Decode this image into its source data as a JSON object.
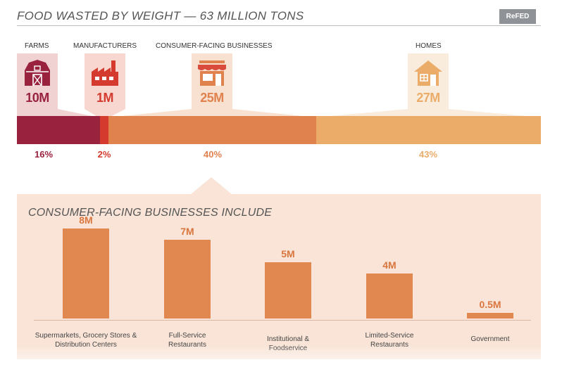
{
  "header": {
    "title": "FOOD WASTED BY WEIGHT — 63 MILLION TONS",
    "badge": "ReFED"
  },
  "categories": [
    {
      "label": "FARMS",
      "value": "10M",
      "pct": "16%",
      "icon": "barn-icon",
      "color": "#99223f",
      "pill_bg": "#f1d2d3"
    },
    {
      "label": "MANUFACTURERS",
      "value": "1M",
      "pct": "2%",
      "icon": "factory-icon",
      "color": "#d43b2e",
      "pill_bg": "#f8d7d1"
    },
    {
      "label": "CONSUMER-FACING BUSINESSES",
      "value": "25M",
      "pct": "40%",
      "icon": "storefront-icon",
      "color": "#e0824e",
      "pill_bg": "#f8e1d0"
    },
    {
      "label": "HOMES",
      "value": "27M",
      "pct": "43%",
      "icon": "house-icon",
      "color": "#ebac6a",
      "pill_bg": "#f9ecdc"
    }
  ],
  "detail": {
    "title": "CONSUMER-FACING BUSINESSES INCLUDE",
    "bars": [
      {
        "label": "Supermarkets, Grocery Stores & Distribution Centers",
        "value_label": "8M"
      },
      {
        "label": "Full-Service Restaurants",
        "value_label": "7M"
      },
      {
        "label": "Institutional & Foodservice",
        "value_label": "5M"
      },
      {
        "label": "Limited-Service Restaurants",
        "value_label": "4M"
      },
      {
        "label": "Government",
        "value_label": "0.5M"
      }
    ]
  },
  "chart_data": [
    {
      "type": "bar",
      "title": "FOOD WASTED BY WEIGHT — 63 MILLION TONS",
      "orientation": "horizontal-stacked",
      "categories": [
        "FARMS",
        "MANUFACTURERS",
        "CONSUMER-FACING BUSINESSES",
        "HOMES"
      ],
      "values": [
        10,
        1,
        25,
        27
      ],
      "percent_labels": [
        "16%",
        "2%",
        "40%",
        "43%"
      ],
      "colors": [
        "#99223f",
        "#d43b2e",
        "#e0824e",
        "#ebac6a"
      ]
    },
    {
      "type": "bar",
      "title": "CONSUMER-FACING BUSINESSES INCLUDE",
      "categories": [
        "Supermarkets, Grocery Stores & Distribution Centers",
        "Full-Service Restaurants",
        "Institutional & Foodservice",
        "Limited-Service Restaurants",
        "Government"
      ],
      "values": [
        8,
        7,
        5,
        4,
        0.5
      ],
      "ylim": [
        0,
        8
      ],
      "color": "#e08850"
    }
  ]
}
